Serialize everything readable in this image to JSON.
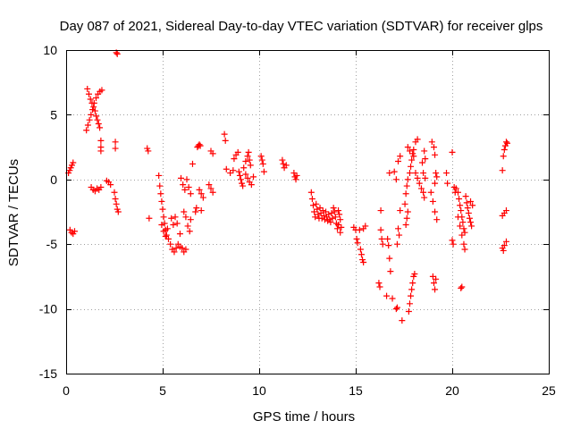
{
  "chart_data": {
    "type": "scatter",
    "title": "Day 087 of 2021, Sidereal Day-to-day VTEC variation (SDTVAR) for receiver glps",
    "xlabel": "GPS time / hours",
    "ylabel": "SDTVAR / TECUs",
    "xlim": [
      0,
      25
    ],
    "ylim": [
      -15,
      10
    ],
    "xticks": [
      0,
      5,
      10,
      15,
      20,
      25
    ],
    "yticks": [
      -15,
      -10,
      -5,
      0,
      5,
      10
    ],
    "xtick_labels": [
      "0",
      "5",
      "10",
      "15",
      "20",
      "25"
    ],
    "ytick_labels": [
      "-15",
      "-10",
      "-5",
      "0",
      "5",
      "10"
    ],
    "grid": true,
    "marker": "+",
    "color": "#ff0000",
    "series": [
      {
        "name": "SDTVAR",
        "points": [
          [
            0.12,
            0.5
          ],
          [
            0.18,
            0.7
          ],
          [
            0.24,
            0.9
          ],
          [
            0.3,
            1.1
          ],
          [
            0.36,
            1.3
          ],
          [
            0.2,
            -3.9
          ],
          [
            0.28,
            -4.1
          ],
          [
            0.36,
            -4.2
          ],
          [
            0.44,
            -4.0
          ],
          [
            1.1,
            7.0
          ],
          [
            1.18,
            6.6
          ],
          [
            1.26,
            6.2
          ],
          [
            1.34,
            5.9
          ],
          [
            1.42,
            5.6
          ],
          [
            1.5,
            5.3
          ],
          [
            1.56,
            4.9
          ],
          [
            1.62,
            4.6
          ],
          [
            1.68,
            4.3
          ],
          [
            1.74,
            4.0
          ],
          [
            1.05,
            3.8
          ],
          [
            1.13,
            4.2
          ],
          [
            1.21,
            4.6
          ],
          [
            1.29,
            5.0
          ],
          [
            1.37,
            5.4
          ],
          [
            1.45,
            5.9
          ],
          [
            1.55,
            6.3
          ],
          [
            1.65,
            6.6
          ],
          [
            1.75,
            6.8
          ],
          [
            1.85,
            6.9
          ],
          [
            1.3,
            -0.6
          ],
          [
            1.4,
            -0.8
          ],
          [
            1.5,
            -0.9
          ],
          [
            1.6,
            -0.7
          ],
          [
            1.7,
            -0.8
          ],
          [
            1.8,
            -0.6
          ],
          [
            1.8,
            3.0
          ],
          [
            1.8,
            2.5
          ],
          [
            1.8,
            2.2
          ],
          [
            2.1,
            -0.1
          ],
          [
            2.2,
            -0.2
          ],
          [
            2.3,
            -0.4
          ],
          [
            2.5,
            -1.0
          ],
          [
            2.55,
            -1.5
          ],
          [
            2.6,
            -1.9
          ],
          [
            2.65,
            -2.3
          ],
          [
            2.7,
            -2.5
          ],
          [
            2.55,
            2.9
          ],
          [
            2.55,
            2.4
          ],
          [
            2.6,
            9.8
          ],
          [
            2.65,
            9.7
          ],
          [
            4.2,
            2.4
          ],
          [
            4.25,
            2.2
          ],
          [
            4.3,
            -3.0
          ],
          [
            4.8,
            0.3
          ],
          [
            4.85,
            -0.5
          ],
          [
            4.9,
            -1.1
          ],
          [
            4.95,
            -1.7
          ],
          [
            5.0,
            -2.3
          ],
          [
            5.05,
            -2.9
          ],
          [
            5.1,
            -3.4
          ],
          [
            5.15,
            -3.9
          ],
          [
            5.2,
            -4.3
          ],
          [
            4.95,
            -3.5
          ],
          [
            5.05,
            -4.0
          ],
          [
            5.15,
            -4.4
          ],
          [
            5.25,
            -3.8
          ],
          [
            5.3,
            -4.6
          ],
          [
            5.4,
            -5.0
          ],
          [
            5.5,
            -5.4
          ],
          [
            5.6,
            -5.6
          ],
          [
            5.7,
            -5.3
          ],
          [
            5.8,
            -5.0
          ],
          [
            5.9,
            -5.2
          ],
          [
            5.45,
            -3.0
          ],
          [
            5.55,
            -3.5
          ],
          [
            5.65,
            -2.9
          ],
          [
            5.75,
            -3.4
          ],
          [
            5.9,
            -4.2
          ],
          [
            6.0,
            -5.3
          ],
          [
            6.1,
            -5.6
          ],
          [
            6.2,
            -5.4
          ],
          [
            6.1,
            -2.5
          ],
          [
            6.2,
            -2.9
          ],
          [
            6.3,
            -3.6
          ],
          [
            6.4,
            -4.0
          ],
          [
            6.45,
            -3.1
          ],
          [
            5.95,
            0.1
          ],
          [
            6.05,
            -0.4
          ],
          [
            6.15,
            -0.8
          ],
          [
            6.25,
            0.0
          ],
          [
            6.35,
            -0.6
          ],
          [
            6.45,
            -1.1
          ],
          [
            6.55,
            1.2
          ],
          [
            6.8,
            2.5
          ],
          [
            6.85,
            2.6
          ],
          [
            6.9,
            2.7
          ],
          [
            6.95,
            2.6
          ],
          [
            6.9,
            -0.8
          ],
          [
            7.0,
            -1.1
          ],
          [
            7.1,
            -1.4
          ],
          [
            7.0,
            -2.4
          ],
          [
            6.7,
            -2.5
          ],
          [
            6.75,
            -2.2
          ],
          [
            7.4,
            -0.4
          ],
          [
            7.5,
            -0.7
          ],
          [
            7.6,
            -1.0
          ],
          [
            7.5,
            2.2
          ],
          [
            7.6,
            2.0
          ],
          [
            8.2,
            3.5
          ],
          [
            8.25,
            3.0
          ],
          [
            8.3,
            0.8
          ],
          [
            8.5,
            0.5
          ],
          [
            8.65,
            0.7
          ],
          [
            8.7,
            1.6
          ],
          [
            8.8,
            1.9
          ],
          [
            8.9,
            2.1
          ],
          [
            8.95,
            0.6
          ],
          [
            9.0,
            0.3
          ],
          [
            9.05,
            0.0
          ],
          [
            9.1,
            -0.3
          ],
          [
            9.15,
            -0.5
          ],
          [
            9.2,
            0.9
          ],
          [
            9.3,
            1.4
          ],
          [
            9.4,
            1.8
          ],
          [
            9.5,
            1.5
          ],
          [
            9.55,
            1.1
          ],
          [
            9.3,
            0.4
          ],
          [
            9.4,
            0.1
          ],
          [
            9.5,
            -0.2
          ],
          [
            9.6,
            -0.4
          ],
          [
            9.7,
            0.2
          ],
          [
            9.45,
            2.1
          ],
          [
            10.1,
            1.8
          ],
          [
            10.15,
            1.5
          ],
          [
            10.2,
            1.2
          ],
          [
            10.25,
            0.6
          ],
          [
            11.2,
            1.5
          ],
          [
            11.25,
            1.2
          ],
          [
            11.3,
            0.9
          ],
          [
            11.4,
            1.1
          ],
          [
            11.8,
            0.5
          ],
          [
            11.85,
            0.2
          ],
          [
            11.9,
            0.0
          ],
          [
            11.95,
            0.3
          ],
          [
            12.7,
            -1.0
          ],
          [
            12.75,
            -1.5
          ],
          [
            12.8,
            -2.0
          ],
          [
            12.85,
            -2.5
          ],
          [
            12.9,
            -2.9
          ],
          [
            12.95,
            -1.9
          ],
          [
            13.0,
            -2.3
          ],
          [
            13.05,
            -2.7
          ],
          [
            13.1,
            -3.0
          ],
          [
            13.15,
            -2.2
          ],
          [
            13.2,
            -2.6
          ],
          [
            13.25,
            -3.0
          ],
          [
            13.3,
            -2.4
          ],
          [
            13.35,
            -2.8
          ],
          [
            13.4,
            -3.1
          ],
          [
            13.45,
            -2.5
          ],
          [
            13.5,
            -2.9
          ],
          [
            13.55,
            -3.2
          ],
          [
            13.6,
            -2.7
          ],
          [
            13.65,
            -3.1
          ],
          [
            13.7,
            -3.3
          ],
          [
            13.75,
            -2.6
          ],
          [
            13.8,
            -3.0
          ],
          [
            13.85,
            -2.2
          ],
          [
            13.9,
            -2.5
          ],
          [
            13.95,
            -2.9
          ],
          [
            14.0,
            -3.4
          ],
          [
            14.05,
            -3.8
          ],
          [
            14.1,
            -3.5
          ],
          [
            14.1,
            -2.4
          ],
          [
            14.15,
            -2.7
          ],
          [
            14.2,
            -3.1
          ],
          [
            14.25,
            -3.7
          ],
          [
            14.2,
            -4.1
          ],
          [
            14.9,
            -3.7
          ],
          [
            15.0,
            -3.9
          ],
          [
            15.05,
            -4.6
          ],
          [
            15.1,
            -4.9
          ],
          [
            15.2,
            -3.9
          ],
          [
            15.25,
            -5.4
          ],
          [
            15.3,
            -5.8
          ],
          [
            15.35,
            -6.2
          ],
          [
            15.4,
            -6.4
          ],
          [
            15.4,
            -3.8
          ],
          [
            15.5,
            -3.6
          ],
          [
            16.2,
            -8.0
          ],
          [
            16.25,
            -8.3
          ],
          [
            16.3,
            -3.9
          ],
          [
            16.35,
            -4.6
          ],
          [
            16.4,
            -5.0
          ],
          [
            16.3,
            -2.4
          ],
          [
            16.6,
            -9.0
          ],
          [
            16.65,
            -4.6
          ],
          [
            16.7,
            -5.1
          ],
          [
            16.75,
            -6.1
          ],
          [
            16.8,
            -7.1
          ],
          [
            16.9,
            -9.2
          ],
          [
            16.75,
            0.5
          ],
          [
            17.1,
            -10.0
          ],
          [
            17.15,
            -9.9
          ],
          [
            17.0,
            0.6
          ],
          [
            17.1,
            0.0
          ],
          [
            17.2,
            -3.8
          ],
          [
            17.25,
            -4.3
          ],
          [
            17.15,
            -5.0
          ],
          [
            17.3,
            -2.4
          ],
          [
            17.2,
            1.4
          ],
          [
            17.3,
            1.8
          ],
          [
            17.4,
            -10.9
          ],
          [
            17.6,
            -3.5
          ],
          [
            17.65,
            -3.0
          ],
          [
            17.7,
            -2.5
          ],
          [
            17.75,
            -10.2
          ],
          [
            17.8,
            -9.6
          ],
          [
            17.85,
            -9.0
          ],
          [
            17.9,
            -8.5
          ],
          [
            17.95,
            -8.0
          ],
          [
            18.0,
            -7.5
          ],
          [
            18.05,
            -7.3
          ],
          [
            17.55,
            -1.9
          ],
          [
            17.6,
            -1.1
          ],
          [
            17.65,
            -0.5
          ],
          [
            17.7,
            0.0
          ],
          [
            17.8,
            0.5
          ],
          [
            17.85,
            1.0
          ],
          [
            17.9,
            1.5
          ],
          [
            17.95,
            2.0
          ],
          [
            18.0,
            2.3
          ],
          [
            18.1,
            2.9
          ],
          [
            18.2,
            3.1
          ],
          [
            17.7,
            2.5
          ],
          [
            17.8,
            2.2
          ],
          [
            18.0,
            1.8
          ],
          [
            18.1,
            0.5
          ],
          [
            18.2,
            0.1
          ],
          [
            18.3,
            -0.3
          ],
          [
            18.4,
            -0.7
          ],
          [
            18.5,
            -1.0
          ],
          [
            18.55,
            -1.4
          ],
          [
            18.5,
            0.5
          ],
          [
            18.6,
            0.1
          ],
          [
            18.45,
            1.3
          ],
          [
            18.55,
            2.2
          ],
          [
            18.6,
            1.6
          ],
          [
            19.0,
            -7.5
          ],
          [
            19.05,
            -8.0
          ],
          [
            19.1,
            -8.5
          ],
          [
            19.15,
            -7.7
          ],
          [
            18.9,
            -1.0
          ],
          [
            19.0,
            -1.7
          ],
          [
            19.1,
            -2.5
          ],
          [
            19.2,
            -3.1
          ],
          [
            18.95,
            2.9
          ],
          [
            19.05,
            2.5
          ],
          [
            19.1,
            1.9
          ],
          [
            19.15,
            0.5
          ],
          [
            19.2,
            0.2
          ],
          [
            19.1,
            -0.3
          ],
          [
            19.7,
            0.5
          ],
          [
            19.75,
            -0.3
          ],
          [
            20.0,
            -4.7
          ],
          [
            20.05,
            -5.0
          ],
          [
            20.0,
            2.1
          ],
          [
            20.1,
            -0.6
          ],
          [
            20.15,
            -1.0
          ],
          [
            20.2,
            -0.7
          ],
          [
            20.3,
            -1.0
          ],
          [
            20.35,
            -1.5
          ],
          [
            20.4,
            -2.0
          ],
          [
            20.45,
            -2.4
          ],
          [
            20.5,
            -2.9
          ],
          [
            20.55,
            -3.3
          ],
          [
            20.6,
            -3.8
          ],
          [
            20.65,
            -4.1
          ],
          [
            20.7,
            -1.3
          ],
          [
            20.75,
            -1.8
          ],
          [
            20.8,
            -2.2
          ],
          [
            20.85,
            -2.6
          ],
          [
            20.9,
            -3.0
          ],
          [
            20.95,
            -3.3
          ],
          [
            21.0,
            -3.6
          ],
          [
            21.05,
            -2.0
          ],
          [
            20.95,
            -1.7
          ],
          [
            20.3,
            -2.9
          ],
          [
            20.4,
            -3.6
          ],
          [
            20.5,
            -4.3
          ],
          [
            20.6,
            -5.0
          ],
          [
            20.65,
            -5.4
          ],
          [
            20.45,
            -8.4
          ],
          [
            20.5,
            -8.3
          ],
          [
            22.6,
            0.7
          ],
          [
            22.65,
            1.8
          ],
          [
            22.7,
            2.3
          ],
          [
            22.75,
            2.6
          ],
          [
            22.8,
            2.9
          ],
          [
            22.85,
            2.8
          ],
          [
            22.6,
            -2.8
          ],
          [
            22.7,
            -2.6
          ],
          [
            22.8,
            -2.4
          ],
          [
            22.6,
            -5.3
          ],
          [
            22.65,
            -5.5
          ],
          [
            22.7,
            -5.1
          ],
          [
            22.8,
            -4.8
          ]
        ]
      }
    ]
  }
}
